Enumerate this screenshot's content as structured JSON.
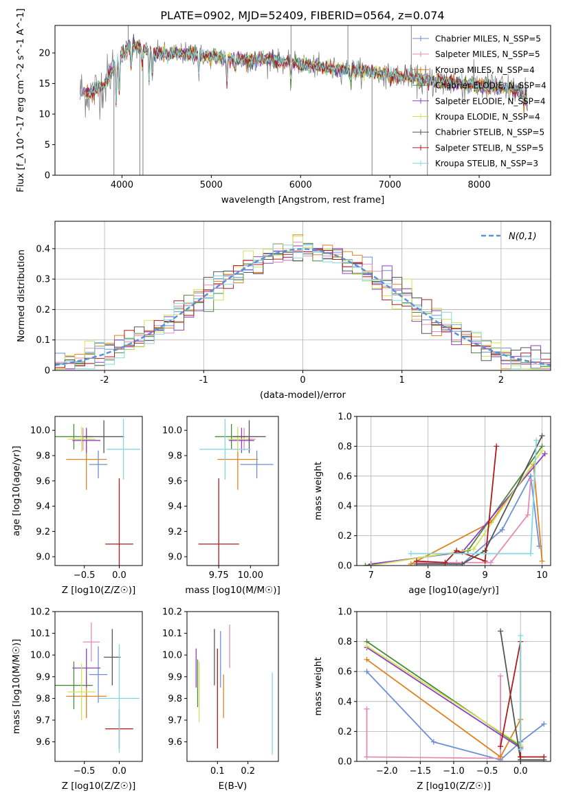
{
  "figure": {
    "title": "PLATE=0902, MJD=52409, FIBERID=0564, z=0.074"
  },
  "colors": {
    "Chabrier MILES": "#6a8fd8",
    "Salpeter MILES": "#e68bb4",
    "Kroupa MILES": "#e0801e",
    "Chabrier ELODIE": "#4a8a3a",
    "Salpeter ELODIE": "#8e3fbf",
    "Kroupa ELODIE": "#d0e35a",
    "Chabrier STELIB": "#555555",
    "Salpeter STELIB": "#b01a1a",
    "Kroupa STELIB": "#82d8dc",
    "data": "#808080",
    "gauss": "#5b8fd6"
  },
  "chart_data": [
    {
      "id": "spectrum",
      "type": "line",
      "title": "PLATE=0902, MJD=52409, FIBERID=0564, z=0.074",
      "xlabel": "wavelength [Angstrom, rest frame]",
      "ylabel": "Flux [f_λ 10^-17 erg cm^-2 s^-1 A^-1]",
      "xlim": [
        3250,
        8800
      ],
      "ylim": [
        0,
        24.5
      ],
      "xticks": [
        4000,
        5000,
        6000,
        7000,
        8000
      ],
      "yticks": [
        0,
        5,
        10,
        15,
        20
      ],
      "legend_placement": "top-right",
      "continuum": {
        "x": [
          3530,
          3650,
          3800,
          3950,
          4100,
          4250,
          4400,
          4600,
          4800,
          5000,
          5200,
          5400,
          5600,
          5800,
          6000,
          6200,
          6400,
          6600,
          6800,
          7000,
          7200,
          7400,
          7600,
          7800,
          8000,
          8200,
          8400,
          8540
        ],
        "y": [
          13.8,
          13.3,
          14.8,
          19.0,
          21.3,
          20.5,
          19.9,
          19.9,
          19.8,
          19.4,
          19.2,
          18.9,
          18.9,
          18.6,
          18.2,
          17.7,
          17.4,
          17.3,
          16.9,
          16.3,
          16.1,
          15.5,
          15.3,
          15.0,
          14.6,
          14.3,
          14.0,
          13.1
        ]
      },
      "series": [
        {
          "name": "Chabrier MILES, N_SSP=5"
        },
        {
          "name": "Salpeter MILES, N_SSP=5"
        },
        {
          "name": "Kroupa MILES, N_SSP=4"
        },
        {
          "name": "Chabrier ELODIE, N_SSP=4"
        },
        {
          "name": "Salpeter ELODIE, N_SSP=4"
        },
        {
          "name": "Kroupa ELODIE, N_SSP=4"
        },
        {
          "name": "Chabrier STELIB, N_SSP=5"
        },
        {
          "name": "Salpeter STELIB, N_SSP=5"
        },
        {
          "name": "Kroupa STELIB, N_SSP=3"
        }
      ]
    },
    {
      "id": "residuals",
      "type": "line",
      "xlabel": "(data-model)/error",
      "ylabel": "Normed distribution",
      "xlim": [
        -2.5,
        2.5
      ],
      "ylim": [
        0,
        0.49
      ],
      "xticks": [
        -2,
        -1,
        0,
        1,
        2
      ],
      "yticks": [
        0.0,
        0.1,
        0.2,
        0.3,
        0.4
      ],
      "grid": true,
      "legend_placement": "top-right",
      "legend_label": "N(0,1)",
      "bins": [
        -2.5,
        -2.4,
        -2.3,
        -2.2,
        -2.1,
        -2.0,
        -1.9,
        -1.8,
        -1.7,
        -1.6,
        -1.5,
        -1.4,
        -1.3,
        -1.2,
        -1.1,
        -1.0,
        -0.9,
        -0.8,
        -0.7,
        -0.6,
        -0.5,
        -0.4,
        -0.3,
        -0.2,
        -0.1,
        0.0,
        0.1,
        0.2,
        0.3,
        0.4,
        0.5,
        0.6,
        0.7,
        0.8,
        0.9,
        1.0,
        1.1,
        1.2,
        1.3,
        1.4,
        1.5,
        1.6,
        1.7,
        1.8,
        1.9,
        2.0,
        2.1,
        2.2,
        2.3,
        2.4,
        2.5
      ]
    },
    {
      "id": "age-Z",
      "type": "scatter",
      "xlabel": "Z [log10(Z/Z☉)]",
      "ylabel": "age  [log10(age/yr)]",
      "xlim": [
        -0.92,
        0.33
      ],
      "ylim": [
        8.93,
        10.11
      ],
      "xticks": [
        -0.5,
        0.0
      ],
      "xticklabels": [
        "−0.5",
        "0.0"
      ],
      "yticks": [
        9.0,
        9.2,
        9.4,
        9.6,
        9.8,
        10.0
      ],
      "yticklabels": [
        "9.0",
        "9.2",
        "9.4",
        "9.6",
        "9.8",
        "10.0"
      ],
      "points": [
        {
          "name": "Chabrier MILES",
          "x": -0.3,
          "xerr": 0.13,
          "y": 9.73,
          "yerr": 0.11
        },
        {
          "name": "Salpeter MILES",
          "x": -0.52,
          "xerr": 0.17,
          "y": 9.93,
          "yerr": 0.09
        },
        {
          "name": "Kroupa MILES",
          "x": -0.47,
          "xerr": 0.29,
          "y": 9.77,
          "yerr": 0.24
        },
        {
          "name": "Chabrier ELODIE",
          "x": -0.65,
          "xerr": 0.27,
          "y": 9.95,
          "yerr": 0.1
        },
        {
          "name": "Salpeter ELODIE",
          "x": -0.47,
          "xerr": 0.2,
          "y": 9.92,
          "yerr": 0.1
        },
        {
          "name": "Kroupa ELODIE",
          "x": -0.54,
          "xerr": 0.2,
          "y": 9.93,
          "yerr": 0.1
        },
        {
          "name": "Chabrier STELIB",
          "x": -0.22,
          "xerr": 0.29,
          "y": 9.95,
          "yerr": 0.13
        },
        {
          "name": "Salpeter STELIB",
          "x": 0.0,
          "xerr": 0.2,
          "y": 9.1,
          "yerr": 0.52
        },
        {
          "name": "Kroupa STELIB",
          "x": 0.06,
          "xerr": 0.24,
          "y": 9.85,
          "yerr": 0.24
        }
      ]
    },
    {
      "id": "age-mass",
      "type": "scatter",
      "xlabel": "mass [log10(M/M☉)]",
      "ylabel": "",
      "xlim": [
        9.5,
        10.22
      ],
      "ylim": [
        8.93,
        10.11
      ],
      "xticks": [
        9.75,
        10.0
      ],
      "xticklabels": [
        "9.75",
        "10.00"
      ],
      "yticks": [
        9.0,
        9.2,
        9.4,
        9.6,
        9.8,
        10.0
      ],
      "yticklabels": [
        "9.0",
        "9.2",
        "9.4",
        "9.6",
        "9.8",
        "10.0"
      ],
      "points": [
        {
          "name": "Chabrier MILES",
          "x": 10.05,
          "xerr": 0.13,
          "y": 9.73,
          "yerr": 0.11
        },
        {
          "name": "Salpeter MILES",
          "x": 9.95,
          "xerr": 0.09,
          "y": 9.93,
          "yerr": 0.09
        },
        {
          "name": "Kroupa MILES",
          "x": 9.9,
          "xerr": 0.16,
          "y": 9.77,
          "yerr": 0.24
        },
        {
          "name": "Chabrier ELODIE",
          "x": 9.85,
          "xerr": 0.13,
          "y": 9.95,
          "yerr": 0.1
        },
        {
          "name": "Salpeter ELODIE",
          "x": 9.93,
          "xerr": 0.1,
          "y": 9.92,
          "yerr": 0.1
        },
        {
          "name": "Kroupa ELODIE",
          "x": 9.9,
          "xerr": 0.08,
          "y": 9.93,
          "yerr": 0.1
        },
        {
          "name": "Chabrier STELIB",
          "x": 9.99,
          "xerr": 0.13,
          "y": 9.95,
          "yerr": 0.13
        },
        {
          "name": "Salpeter STELIB",
          "x": 9.75,
          "xerr": 0.16,
          "y": 9.1,
          "yerr": 0.52
        },
        {
          "name": "Kroupa STELIB",
          "x": 9.8,
          "xerr": 0.2,
          "y": 9.85,
          "yerr": 0.24
        }
      ]
    },
    {
      "id": "weight-age",
      "type": "line",
      "xlabel": "age  [log10(age/yr)]",
      "ylabel": "mass weight",
      "xlim": [
        6.75,
        10.15
      ],
      "ylim": [
        0,
        1.0
      ],
      "xticks": [
        7,
        8,
        9,
        10
      ],
      "xticklabels": [
        "7",
        "8",
        "9",
        "10"
      ],
      "yticks": [
        0.0,
        0.2,
        0.4,
        0.6,
        0.8,
        1.0
      ],
      "yticklabels": [
        "0.0",
        "0.2",
        "0.4",
        "0.6",
        "0.8",
        "1.0"
      ],
      "grid": true,
      "series": [
        {
          "name": "Chabrier MILES",
          "x": [
            7.8,
            8.6,
            9.3,
            9.8,
            9.95
          ],
          "y": [
            0.02,
            0.01,
            0.24,
            0.6,
            0.13
          ]
        },
        {
          "name": "Salpeter MILES",
          "x": [
            7.8,
            8.5,
            9.1,
            9.75,
            9.8
          ],
          "y": [
            0.02,
            0.02,
            0.02,
            0.34,
            0.57
          ]
        },
        {
          "name": "Kroupa MILES",
          "x": [
            7.7,
            9.1,
            9.85,
            10.0
          ],
          "y": [
            0.01,
            0.29,
            0.68,
            0.03
          ]
        },
        {
          "name": "Chabrier ELODIE",
          "x": [
            6.9,
            8.7,
            10.0
          ],
          "y": [
            0.0,
            0.1,
            0.8
          ]
        },
        {
          "name": "Salpeter ELODIE",
          "x": [
            7.0,
            8.6,
            10.05
          ],
          "y": [
            0.01,
            0.09,
            0.75
          ]
        },
        {
          "name": "Kroupa ELODIE",
          "x": [
            7.0,
            8.8,
            10.0
          ],
          "y": [
            0.0,
            0.11,
            0.77
          ]
        },
        {
          "name": "Chabrier STELIB",
          "x": [
            7.8,
            8.6,
            9.0,
            10.0
          ],
          "y": [
            0.01,
            0.01,
            0.1,
            0.87
          ]
        },
        {
          "name": "Salpeter STELIB",
          "x": [
            7.8,
            8.3,
            8.5,
            9.0,
            9.2
          ],
          "y": [
            0.03,
            0.02,
            0.1,
            0.03,
            0.8
          ]
        },
        {
          "name": "Kroupa STELIB",
          "x": [
            7.7,
            9.8,
            9.9
          ],
          "y": [
            0.08,
            0.08,
            0.84
          ]
        }
      ]
    },
    {
      "id": "mass-Z",
      "type": "scatter",
      "xlabel": "Z [log10(Z/Z☉)]",
      "ylabel": "mass [log10(M/M☉)]",
      "xlim": [
        -0.92,
        0.33
      ],
      "ylim": [
        9.51,
        10.2
      ],
      "xticks": [
        -0.5,
        0.0
      ],
      "xticklabels": [
        "−0.5",
        "0.0"
      ],
      "yticks": [
        9.6,
        9.7,
        9.8,
        9.9,
        10.0,
        10.1,
        10.2
      ],
      "yticklabels": [
        "9.6",
        "9.7",
        "9.8",
        "9.9",
        "10.0",
        "10.1",
        "10.2"
      ],
      "points": [
        {
          "name": "Chabrier MILES",
          "x": -0.3,
          "xerr": 0.13,
          "y": 9.91,
          "yerr": 0.13
        },
        {
          "name": "Salpeter MILES",
          "x": -0.4,
          "xerr": 0.12,
          "y": 10.06,
          "yerr": 0.09
        },
        {
          "name": "Kroupa MILES",
          "x": -0.47,
          "xerr": 0.29,
          "y": 9.81,
          "yerr": 0.1
        },
        {
          "name": "Chabrier ELODIE",
          "x": -0.65,
          "xerr": 0.27,
          "y": 9.86,
          "yerr": 0.11
        },
        {
          "name": "Salpeter ELODIE",
          "x": -0.47,
          "xerr": 0.2,
          "y": 9.94,
          "yerr": 0.09
        },
        {
          "name": "Kroupa ELODIE",
          "x": -0.54,
          "xerr": 0.2,
          "y": 9.83,
          "yerr": 0.13
        },
        {
          "name": "Chabrier STELIB",
          "x": -0.1,
          "xerr": 0.12,
          "y": 9.99,
          "yerr": 0.13
        },
        {
          "name": "Salpeter STELIB",
          "x": 0.0,
          "xerr": 0.2,
          "y": 9.66,
          "yerr": 0.09
        },
        {
          "name": "Kroupa STELIB",
          "x": 0.0,
          "xerr": 0.29,
          "y": 9.8,
          "yerr": 0.25
        }
      ]
    },
    {
      "id": "mass-ebv",
      "type": "scatter",
      "xlabel": "E(B-V)",
      "ylabel": "",
      "xlim": [
        0.0,
        0.3
      ],
      "ylim": [
        9.51,
        10.2
      ],
      "xticks": [
        0.1,
        0.2
      ],
      "xticklabels": [
        "0.1",
        "0.2"
      ],
      "yticks": [
        9.6,
        9.7,
        9.8,
        9.9,
        10.0,
        10.1,
        10.2
      ],
      "yticklabels": [
        "9.6",
        "9.7",
        "9.8",
        "9.9",
        "10.0",
        "10.1",
        "10.2"
      ],
      "points": [
        {
          "name": "Chabrier MILES",
          "x": 0.11,
          "xerr": 0,
          "y": 9.98,
          "yerr": 0.13
        },
        {
          "name": "Salpeter MILES",
          "x": 0.14,
          "xerr": 0,
          "y": 10.04,
          "yerr": 0.1
        },
        {
          "name": "Kroupa MILES",
          "x": 0.12,
          "xerr": 0,
          "y": 9.81,
          "yerr": 0.1
        },
        {
          "name": "Chabrier ELODIE",
          "x": 0.035,
          "xerr": 0,
          "y": 9.87,
          "yerr": 0.11
        },
        {
          "name": "Salpeter ELODIE",
          "x": 0.03,
          "xerr": 0,
          "y": 9.94,
          "yerr": 0.09
        },
        {
          "name": "Kroupa ELODIE",
          "x": 0.04,
          "xerr": 0,
          "y": 9.83,
          "yerr": 0.14
        },
        {
          "name": "Chabrier STELIB",
          "x": 0.09,
          "xerr": 0,
          "y": 9.99,
          "yerr": 0.13
        },
        {
          "name": "Salpeter STELIB",
          "x": 0.1,
          "xerr": 0,
          "y": 9.8,
          "yerr": 0.23
        },
        {
          "name": "Kroupa STELIB",
          "x": 0.28,
          "xerr": 0,
          "y": 9.73,
          "yerr": 0.19
        }
      ]
    },
    {
      "id": "weight-Z",
      "type": "line",
      "xlabel": "Z [log10(Z/Z☉)]",
      "ylabel": "mass weight",
      "xlim": [
        -2.45,
        0.45
      ],
      "ylim": [
        0,
        1.0
      ],
      "xticks": [
        -2.0,
        -1.5,
        -1.0,
        -0.5,
        0.0
      ],
      "xticklabels": [
        "−2.0",
        "−1.5",
        "−1.0",
        "−0.5",
        "0.0"
      ],
      "yticks": [
        0.0,
        0.2,
        0.4,
        0.6,
        0.8,
        1.0
      ],
      "yticklabels": [
        "0.0",
        "0.2",
        "0.4",
        "0.6",
        "0.8",
        "1.0"
      ],
      "grid": true,
      "series": [
        {
          "name": "Chabrier MILES",
          "x": [
            -2.3,
            -1.3,
            -0.3,
            0.0,
            0.35
          ],
          "y": [
            0.6,
            0.13,
            0.01,
            0.13,
            0.25
          ]
        },
        {
          "name": "Salpeter MILES",
          "x": [
            -2.3,
            -2.3,
            -0.3,
            -0.3,
            -0.3
          ],
          "y": [
            0.35,
            0.03,
            0.02,
            0.57,
            0.02
          ]
        },
        {
          "name": "Kroupa MILES",
          "x": [
            -2.3,
            -0.3,
            0.0,
            0.0
          ],
          "y": [
            0.68,
            0.03,
            0.28,
            0.01
          ]
        },
        {
          "name": "Chabrier ELODIE",
          "x": [
            -2.3,
            0.0,
            0.0
          ],
          "y": [
            0.8,
            0.1,
            0.08
          ]
        },
        {
          "name": "Salpeter ELODIE",
          "x": [
            -2.3,
            0.0,
            0.0
          ],
          "y": [
            0.76,
            0.09,
            0.1
          ]
        },
        {
          "name": "Kroupa ELODIE",
          "x": [
            -2.3,
            0.0,
            0.0
          ],
          "y": [
            0.77,
            0.11,
            0.1
          ]
        },
        {
          "name": "Chabrier STELIB",
          "x": [
            -0.3,
            0.0,
            0.0,
            0.35
          ],
          "y": [
            0.87,
            0.01,
            0.01,
            0.01
          ]
        },
        {
          "name": "Salpeter STELIB",
          "x": [
            -0.3,
            0.0,
            0.0,
            0.0,
            0.35
          ],
          "y": [
            0.1,
            0.8,
            0.03,
            0.03,
            0.03
          ]
        },
        {
          "name": "Kroupa STELIB",
          "x": [
            0.0,
            0.0,
            0.0
          ],
          "y": [
            0.08,
            0.84,
            0.08
          ]
        }
      ]
    }
  ]
}
